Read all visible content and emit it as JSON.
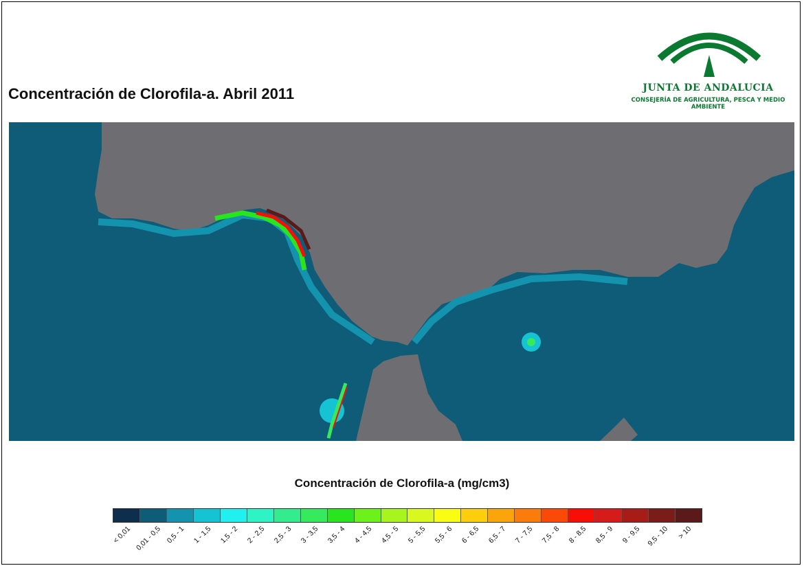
{
  "title": "Concentración de Clorofila-a. Abril 2011",
  "logo": {
    "name": "JUNTA DE ANDALUCIA",
    "department": "CONSEJERÍA DE AGRICULTURA, PESCA Y MEDIO AMBIENTE",
    "icon": "junta-andalucia-arches-logo",
    "color": "#0b7a30"
  },
  "map": {
    "land_color": "#6e6e72",
    "sea_color": "#0f5c78",
    "description_hint": "chlorophyll concentration map, Strait of Gibraltar region"
  },
  "legend": {
    "title": "Concentración de Clorofila-a (mg/cm3)",
    "classes": [
      {
        "label": "< 0,01",
        "color": "#0d2f4d"
      },
      {
        "label": "0,01 - 0,5",
        "color": "#0f5c78"
      },
      {
        "label": "0,5 - 1",
        "color": "#1493ae"
      },
      {
        "label": "1 - 1,5",
        "color": "#16c3d3"
      },
      {
        "label": "1,5 - 2",
        "color": "#22f0ee"
      },
      {
        "label": "2 - 2,5",
        "color": "#2ef3c4"
      },
      {
        "label": "2,5 - 3",
        "color": "#33ec8e"
      },
      {
        "label": "3 - 3,5",
        "color": "#35ea5c"
      },
      {
        "label": "3,5 - 4",
        "color": "#29e51e"
      },
      {
        "label": "4 - 4,5",
        "color": "#6cf21a"
      },
      {
        "label": "4,5 - 5",
        "color": "#a8f41e"
      },
      {
        "label": "5 - 5,5",
        "color": "#d8f820"
      },
      {
        "label": "5,5 - 6",
        "color": "#fbfc14"
      },
      {
        "label": "6 - 6,5",
        "color": "#fcce0e"
      },
      {
        "label": "6,5 - 7",
        "color": "#fca40c"
      },
      {
        "label": "7 - 7,5",
        "color": "#fc7b0a"
      },
      {
        "label": "7,5 - 8",
        "color": "#fb4a08"
      },
      {
        "label": "8 - 8,5",
        "color": "#f70e06"
      },
      {
        "label": "8,5 - 9",
        "color": "#d61c1a"
      },
      {
        "label": "9 - 9,5",
        "color": "#a81c18"
      },
      {
        "label": "9,5 - 10",
        "color": "#7a1c18"
      },
      {
        "label": "> 10",
        "color": "#5a1a1a"
      }
    ]
  }
}
